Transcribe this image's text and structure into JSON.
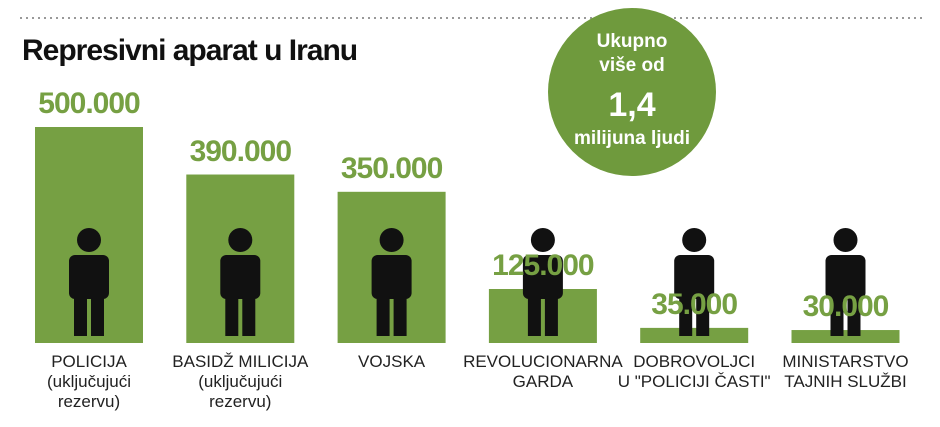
{
  "chart_data": {
    "type": "bar",
    "title": "Represivni aparat u Iranu",
    "categories": [
      "POLICIJA\n(uključujući\nrezervu)",
      "BASIDŽ MILICIJA\n(uključujući\nrezervu)",
      "VOJSKA",
      "REVOLUCIONARNA\nGARDA",
      "DOBROVOLJCI\nU \"POLICIJI ČASTI\"",
      "MINISTARSTVO\nTAJNIH SLUŽBI"
    ],
    "values": [
      500000,
      390000,
      350000,
      125000,
      35000,
      30000
    ],
    "value_labels": [
      "500.000",
      "390.000",
      "350.000",
      "125.000",
      "35.000",
      "30.000"
    ],
    "color": "#76a043",
    "annotation": {
      "top": "Ukupno\nviše od",
      "number": "1,4",
      "bottom": "milijuna ljudi"
    }
  }
}
